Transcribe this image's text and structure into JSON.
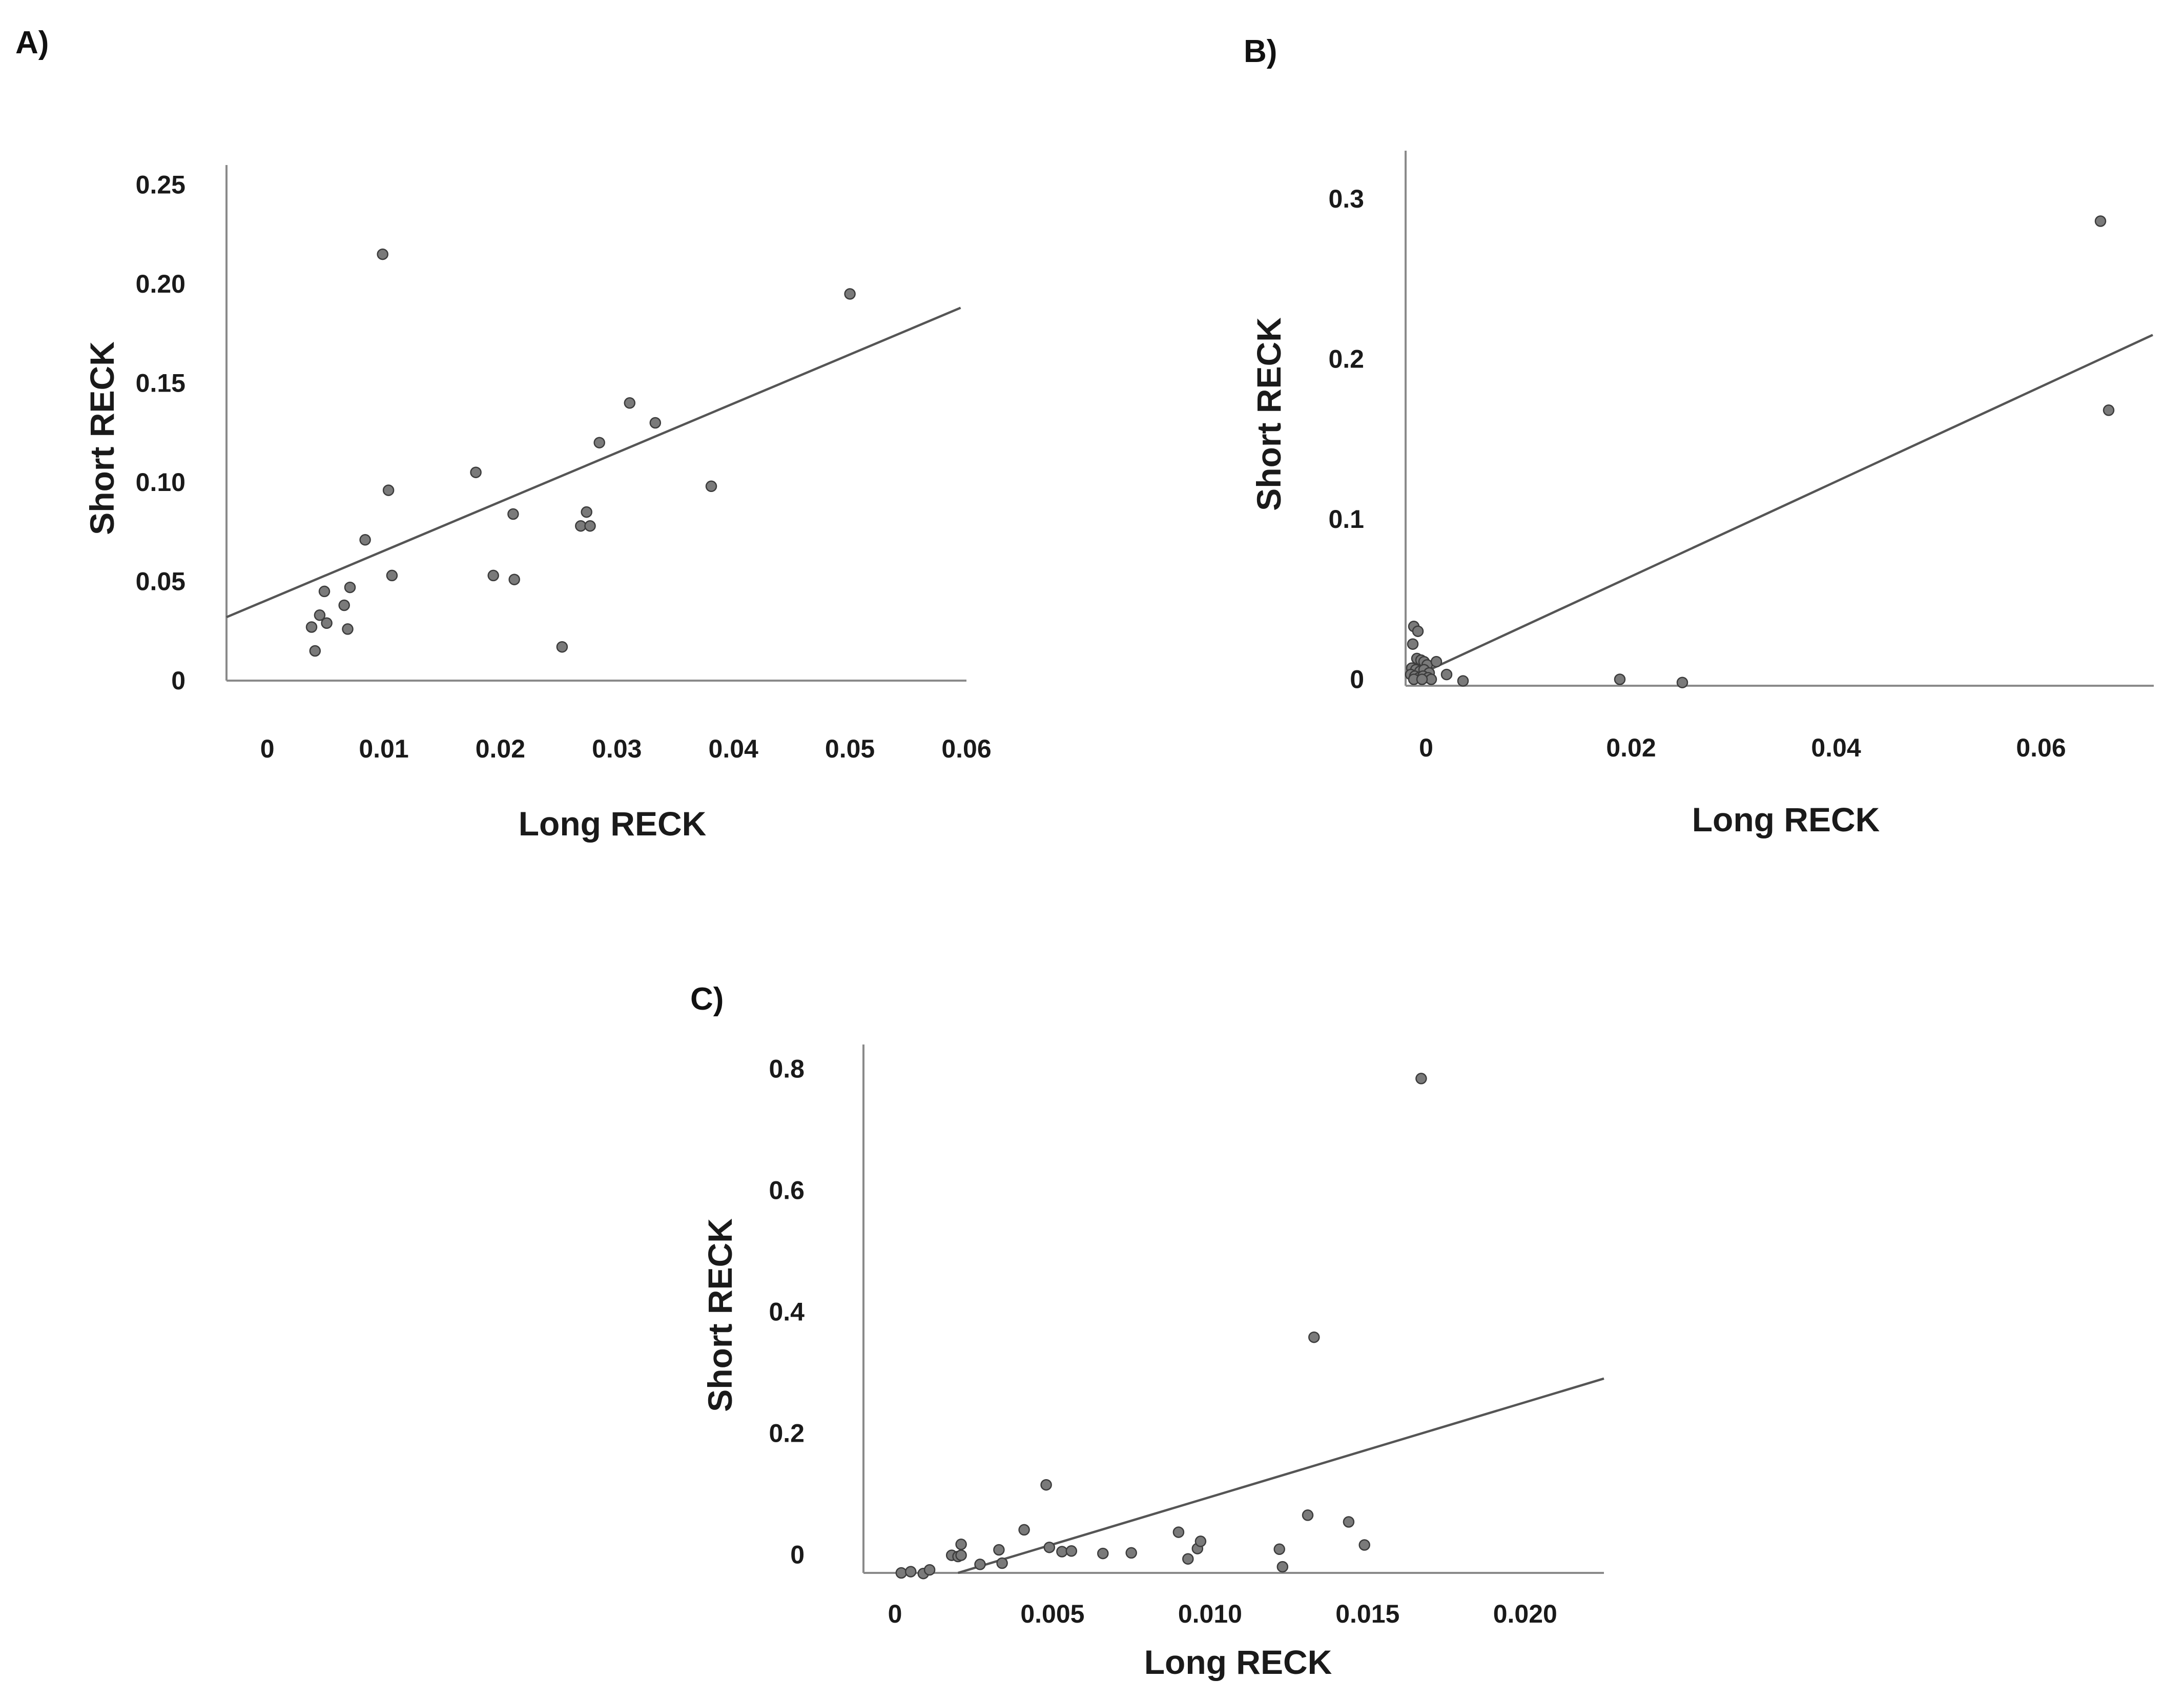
{
  "chart_data": [
    {
      "panel": "A)",
      "type": "scatter",
      "title": "",
      "xlabel": "Long RECK",
      "ylabel": "Short RECK",
      "xlim": [
        -0.0035,
        0.06
      ],
      "ylim": [
        0,
        0.26
      ],
      "xticks": [
        0,
        0.01,
        0.02,
        0.03,
        0.04,
        0.05,
        0.06
      ],
      "xtick_labels": [
        "0",
        "0.01",
        "0.02",
        "0.03",
        "0.04",
        "0.05",
        "0.06"
      ],
      "yticks": [
        0,
        0.05,
        0.1,
        0.15,
        0.2,
        0.25
      ],
      "ytick_labels": [
        "0",
        "0.05",
        "0.10",
        "0.15",
        "0.20",
        "0.25"
      ],
      "fit_line": [
        [
          -0.0035,
          0.032
        ],
        [
          0.0595,
          0.188
        ]
      ],
      "points": [
        [
          0.0038,
          0.027
        ],
        [
          0.0041,
          0.015
        ],
        [
          0.0045,
          0.033
        ],
        [
          0.0049,
          0.045
        ],
        [
          0.0051,
          0.029
        ],
        [
          0.0066,
          0.038
        ],
        [
          0.0069,
          0.026
        ],
        [
          0.0071,
          0.047
        ],
        [
          0.0084,
          0.071
        ],
        [
          0.0099,
          0.215
        ],
        [
          0.0104,
          0.096
        ],
        [
          0.0107,
          0.053
        ],
        [
          0.0179,
          0.105
        ],
        [
          0.0194,
          0.053
        ],
        [
          0.0211,
          0.084
        ],
        [
          0.0212,
          0.051
        ],
        [
          0.0253,
          0.017
        ],
        [
          0.0269,
          0.078
        ],
        [
          0.0274,
          0.085
        ],
        [
          0.0277,
          0.078
        ],
        [
          0.0285,
          0.12
        ],
        [
          0.0311,
          0.14
        ],
        [
          0.0333,
          0.13
        ],
        [
          0.0381,
          0.098
        ],
        [
          0.05,
          0.195
        ]
      ]
    },
    {
      "panel": "B)",
      "type": "scatter",
      "title": "",
      "xlabel": "Long RECK",
      "ylabel": "Short RECK",
      "xlim": [
        -0.002,
        0.071
      ],
      "ylim": [
        -0.004,
        0.33
      ],
      "xticks": [
        0,
        0.02,
        0.04,
        0.06
      ],
      "xtick_labels": [
        "0",
        "0.02",
        "0.04",
        "0.06"
      ],
      "yticks": [
        0,
        0.1,
        0.2,
        0.3
      ],
      "ytick_labels": [
        "0",
        "0.1",
        "0.2",
        "0.3"
      ],
      "fit_line": [
        [
          0.0,
          0.005
        ],
        [
          0.0709,
          0.215
        ]
      ],
      "points": [
        [
          -0.0012,
          0.033
        ],
        [
          -0.0008,
          0.03
        ],
        [
          -0.0013,
          0.022
        ],
        [
          -0.0009,
          0.013
        ],
        [
          -0.0005,
          0.012
        ],
        [
          -0.0002,
          0.011
        ],
        [
          0.0001,
          0.009
        ],
        [
          0.001,
          0.011
        ],
        [
          -0.0014,
          0.007
        ],
        [
          -0.001,
          0.006
        ],
        [
          -0.0006,
          0.005
        ],
        [
          -0.0002,
          0.006
        ],
        [
          0.0003,
          0.004
        ],
        [
          -0.0015,
          0.003
        ],
        [
          -0.0011,
          0.002
        ],
        [
          -0.0007,
          0.001
        ],
        [
          -0.0003,
          0.002
        ],
        [
          0.0002,
          0.001
        ],
        [
          0.0005,
          0.0
        ],
        [
          -0.0012,
          0.0
        ],
        [
          -0.0004,
          0.0
        ],
        [
          0.002,
          0.003
        ],
        [
          0.0036,
          -0.001
        ],
        [
          0.0189,
          0.0
        ],
        [
          0.025,
          -0.002
        ],
        [
          0.0658,
          0.286
        ],
        [
          0.0666,
          0.168
        ]
      ]
    },
    {
      "panel": "C)",
      "type": "scatter",
      "title": "",
      "xlabel": "Long RECK",
      "ylabel": "Short RECK",
      "xlim": [
        -0.001,
        0.0225
      ],
      "ylim": [
        -0.03,
        0.84
      ],
      "xticks": [
        0,
        0.005,
        0.01,
        0.015,
        0.02
      ],
      "xtick_labels": [
        "0",
        "0.005",
        "0.010",
        "0.015",
        "0.020"
      ],
      "yticks": [
        0,
        0.2,
        0.4,
        0.6,
        0.8
      ],
      "ytick_labels": [
        "0",
        "0.2",
        "0.4",
        "0.6",
        "0.8"
      ],
      "fit_line": [
        [
          0.002,
          -0.03
        ],
        [
          0.0225,
          0.29
        ]
      ],
      "points": [
        [
          0.0002,
          -0.03
        ],
        [
          0.0005,
          -0.028
        ],
        [
          0.0009,
          -0.031
        ],
        [
          0.0011,
          -0.025
        ],
        [
          0.0018,
          -0.001
        ],
        [
          0.002,
          -0.003
        ],
        [
          0.0021,
          -0.001
        ],
        [
          0.0021,
          0.017
        ],
        [
          0.0027,
          -0.016
        ],
        [
          0.0033,
          0.008
        ],
        [
          0.0034,
          -0.014
        ],
        [
          0.0041,
          0.041
        ],
        [
          0.0048,
          0.115
        ],
        [
          0.0049,
          0.012
        ],
        [
          0.0053,
          0.005
        ],
        [
          0.0056,
          0.006
        ],
        [
          0.0066,
          0.002
        ],
        [
          0.0075,
          0.003
        ],
        [
          0.009,
          0.037
        ],
        [
          0.0093,
          -0.007
        ],
        [
          0.0096,
          0.01
        ],
        [
          0.0097,
          0.022
        ],
        [
          0.0122,
          0.009
        ],
        [
          0.0123,
          -0.02
        ],
        [
          0.0131,
          0.065
        ],
        [
          0.0133,
          0.358
        ],
        [
          0.0144,
          0.054
        ],
        [
          0.0149,
          0.016
        ],
        [
          0.0167,
          0.784
        ]
      ]
    }
  ]
}
